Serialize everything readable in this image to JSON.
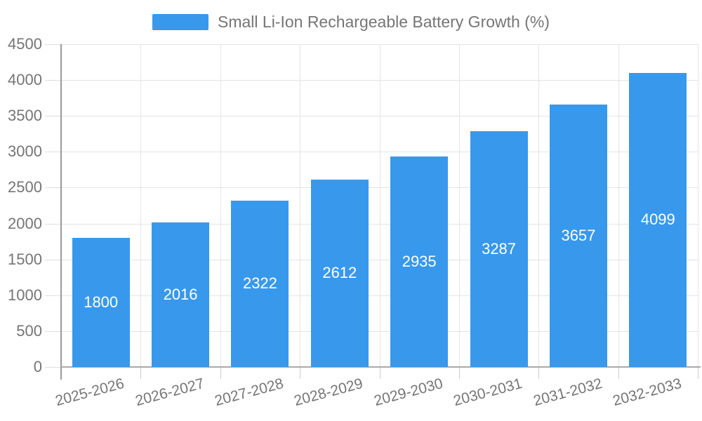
{
  "legend": {
    "label": "Small Li-Ion Rechargeable Battery Growth (%)"
  },
  "chart_data": {
    "type": "bar",
    "title": "Small Li-Ion Rechargeable Battery Growth (%)",
    "series_name": "Small Li-Ion Rechargeable Battery Growth (%)",
    "categories": [
      "2025-2026",
      "2026-2027",
      "2027-2028",
      "2028-2029",
      "2029-2030",
      "2030-2031",
      "2031-2032",
      "2032-2033"
    ],
    "values": [
      1800,
      2016,
      2322,
      2612,
      2935,
      3287,
      3657,
      4099
    ],
    "xlabel": "",
    "ylabel": "",
    "ylim": [
      0,
      4500
    ],
    "ytick_step": 500,
    "grid": true,
    "legend_position": "top",
    "value_labels": "inside-center",
    "colors": {
      "bar": "#3898EC",
      "value_label": "#FFFFFF",
      "axis_text": "#757575",
      "gridline": "#E4E4E4",
      "axis_line": "#999999",
      "background": "#FFFFFF"
    }
  }
}
